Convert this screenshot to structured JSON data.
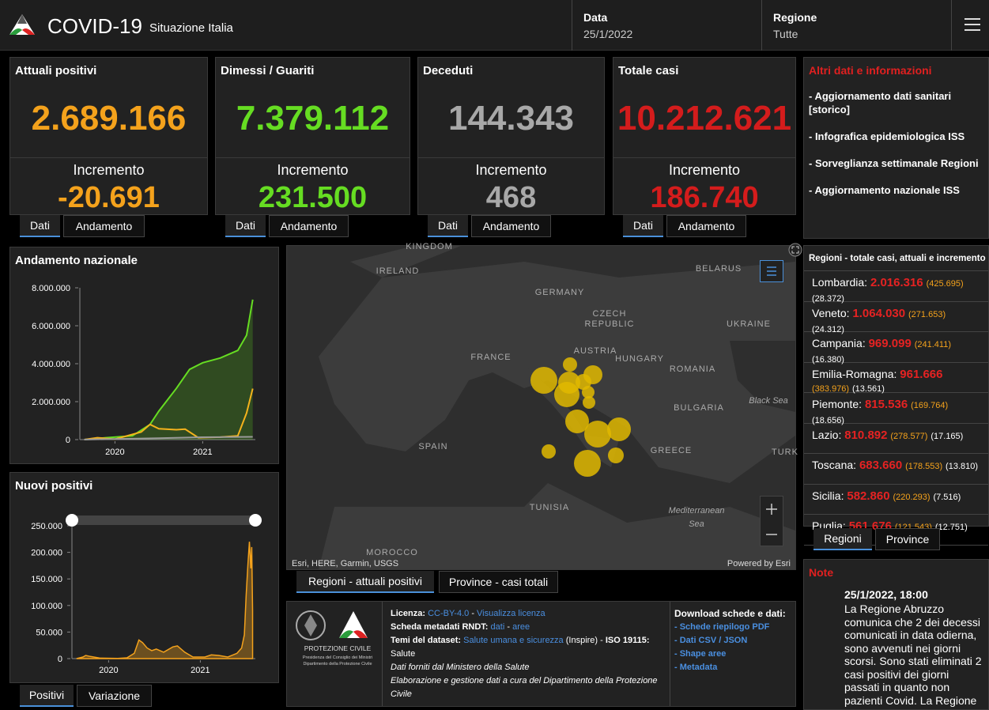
{
  "header": {
    "title": "COVID-19",
    "subtitle": "Situazione Italia",
    "date_label": "Data",
    "date": "25/1/2022",
    "region_label": "Regione",
    "region": "Tutte"
  },
  "card_tabs": [
    "Dati",
    "Andamento"
  ],
  "cards": [
    {
      "title": "Attuali positivi",
      "value": "2.689.166",
      "increment_label": "Incremento",
      "increment": "-20.691",
      "color": "#f4a21c"
    },
    {
      "title": "Dimessi / Guariti",
      "value": "7.379.112",
      "increment_label": "Incremento",
      "increment": "231.500",
      "color": "#66dd22"
    },
    {
      "title": "Deceduti",
      "value": "144.343",
      "increment_label": "Incremento",
      "increment": "468",
      "color": "#a8a8a8"
    },
    {
      "title": "Totale casi",
      "value": "10.212.621",
      "increment_label": "Incremento",
      "increment": "186.740",
      "color": "#d41c1c"
    }
  ],
  "info": {
    "title": "Altri dati e informazioni",
    "links": [
      "- Aggiornamento dati sanitari [storico]",
      "- Infografica epidemiologica ISS",
      "- Sorveglianza settimanale Regioni",
      "- Aggiornamento nazionale ISS"
    ]
  },
  "regions": {
    "title": "Regioni - totale casi, attuali e incremento",
    "tabs": [
      "Regioni",
      "Province"
    ],
    "rows": [
      {
        "name": "Lombardia:",
        "total": "2.016.316",
        "current": "(425.695)",
        "increment": "(28.372)"
      },
      {
        "name": "Veneto:",
        "total": "1.064.030",
        "current": "(271.653)",
        "increment": "(24.312)"
      },
      {
        "name": "Campania:",
        "total": "969.099",
        "current": "(241.411)",
        "increment": "(16.380)"
      },
      {
        "name": "Emilia-Romagna:",
        "total": "961.666",
        "current": "(383.976)",
        "increment": "(13.561)"
      },
      {
        "name": "Piemonte:",
        "total": "815.536",
        "current": "(169.764)",
        "increment": "(18.656)"
      },
      {
        "name": "Lazio:",
        "total": "810.892",
        "current": "(278.577)",
        "increment": "(17.165)"
      },
      {
        "name": "Toscana:",
        "total": "683.660",
        "current": "(178.553)",
        "increment": "(13.810)"
      },
      {
        "name": "Sicilia:",
        "total": "582.860",
        "current": "(220.293)",
        "increment": "(7.516)"
      },
      {
        "name": "Puglia:",
        "total": "561.676",
        "current": "(121.543)",
        "increment": "(12.751)"
      }
    ]
  },
  "note": {
    "title": "Note",
    "date": "25/1/2022, 18:00",
    "text": "La Regione Abruzzo comunica che 2 dei decessi comunicati in data odierna, sono avvenuti nei giorni scorsi. Sono stati eliminati 2 casi positivi dei giorni passati in quanto non pazienti Covid. La Regione"
  },
  "national_chart": {
    "type": "line",
    "title": "Andamento nazionale",
    "xlim": [
      2020.1,
      2022.1
    ],
    "ylim": [
      0,
      8000000
    ],
    "xticks": [
      {
        "value": 2020.5,
        "label": "2020"
      },
      {
        "value": 2021.5,
        "label": "2021"
      }
    ],
    "yticks": [
      0,
      {
        "value": 2000000,
        "label": "2.000.000"
      },
      {
        "value": 4000000,
        "label": "4.000.000"
      },
      {
        "value": 6000000,
        "label": "6.000.000"
      },
      {
        "value": 8000000,
        "label": "8.000.000"
      }
    ],
    "series": [
      {
        "color": "#66dd22",
        "fill": true,
        "x": [
          2020.15,
          2020.4,
          2020.7,
          2020.9,
          2021.0,
          2021.2,
          2021.35,
          2021.5,
          2021.7,
          2021.9,
          2022.0,
          2022.07
        ],
        "values": [
          0,
          100000,
          200000,
          800000,
          1500000,
          2700000,
          3700000,
          4050000,
          4300000,
          4700000,
          5500000,
          7379112
        ]
      },
      {
        "color": "#f4b21c",
        "fill": false,
        "x": [
          2020.15,
          2020.3,
          2020.5,
          2020.8,
          2020.9,
          2021.0,
          2021.2,
          2021.3,
          2021.45,
          2021.7,
          2021.9,
          2022.0,
          2022.07
        ],
        "values": [
          0,
          100000,
          20000,
          400000,
          800000,
          570000,
          520000,
          550000,
          100000,
          130000,
          200000,
          1400000,
          2689166
        ]
      },
      {
        "color": "#9a9a9a",
        "fill": false,
        "x": [
          2020.15,
          2020.5,
          2021.0,
          2021.5,
          2022.07
        ],
        "values": [
          0,
          35000,
          75000,
          127000,
          144343
        ]
      }
    ]
  },
  "new_positives_chart": {
    "type": "area",
    "title": "Nuovi positivi",
    "tabs": [
      "Positivi",
      "Variazione"
    ],
    "color": "#f4a21c",
    "xlim": [
      2020.1,
      2022.1
    ],
    "ylim": [
      0,
      250000
    ],
    "xticks": [
      {
        "value": 2020.5,
        "label": "2020"
      },
      {
        "value": 2021.5,
        "label": "2021"
      }
    ],
    "yticks": [
      0,
      {
        "value": 50000,
        "label": "50.000"
      },
      {
        "value": 100000,
        "label": "100.000"
      },
      {
        "value": 150000,
        "label": "150.000"
      },
      {
        "value": 200000,
        "label": "200.000"
      },
      {
        "value": 250000,
        "label": "250.000"
      }
    ],
    "x": [
      2020.15,
      2020.22,
      2020.25,
      2020.3,
      2020.4,
      2020.6,
      2020.7,
      2020.78,
      2020.83,
      2020.87,
      2020.92,
      2020.97,
      2021.02,
      2021.1,
      2021.2,
      2021.25,
      2021.33,
      2021.42,
      2021.55,
      2021.62,
      2021.7,
      2021.8,
      2021.9,
      2021.95,
      2021.98,
      2022.0,
      2022.02,
      2022.035,
      2022.05,
      2022.06,
      2022.07
    ],
    "values": [
      0,
      3000,
      6000,
      4000,
      1000,
      500,
      1500,
      10000,
      35000,
      30000,
      20000,
      15000,
      18000,
      12000,
      22000,
      24000,
      12000,
      3000,
      3000,
      7000,
      6000,
      3000,
      10000,
      20000,
      45000,
      120000,
      180000,
      220000,
      170000,
      210000,
      90000
    ]
  },
  "map": {
    "tabs": [
      "Regioni - attuali positivi",
      "Province - casi totali"
    ],
    "attribution": "Esri, HERE, Garmin, USGS",
    "powered": "Powered by Esri",
    "labels": [
      "KINGDOM",
      "IRELAND",
      "GERMANY",
      "BELARUS",
      "CZECH",
      "REPUBLIC",
      "UKRAINE",
      "FRANCE",
      "AUSTRIA",
      "HUNGARY",
      "ROMANIA",
      "BULGARIA",
      "Black Sea",
      "SPAIN",
      "GREECE",
      "TURK",
      "TUNISIA",
      "Mediterranean",
      "Sea",
      "MOROCCO"
    ]
  },
  "footer": {
    "logo_text": [
      "PROTEZIONE CIVILE",
      "Presidenza del Consiglio dei Ministri",
      "Dipartimento della Protezione Civile"
    ],
    "license_label": "Licenza:",
    "license": "CC-BY-4.0",
    "sep": "-",
    "license_link": "Visualizza licenza",
    "rndt_label": "Scheda metadati RNDT:",
    "rndt_1": "dati",
    "rndt_2": "aree",
    "themes_label": "Temi del dataset:",
    "themes_link": "Salute umana e sicurezza",
    "themes_rest": "(Inspire) -",
    "iso_label": "ISO 19115:",
    "iso": "Salute",
    "source": "Dati forniti dal Ministero della Salute",
    "elaboration": "Elaborazione e gestione dati a cura del Dipartimento della Protezione Civile",
    "download_title": "Download schede e dati:",
    "downloads": [
      "- Schede riepilogo PDF",
      "- Dati CSV / JSON",
      "- Shape aree",
      "- Metadata"
    ]
  }
}
